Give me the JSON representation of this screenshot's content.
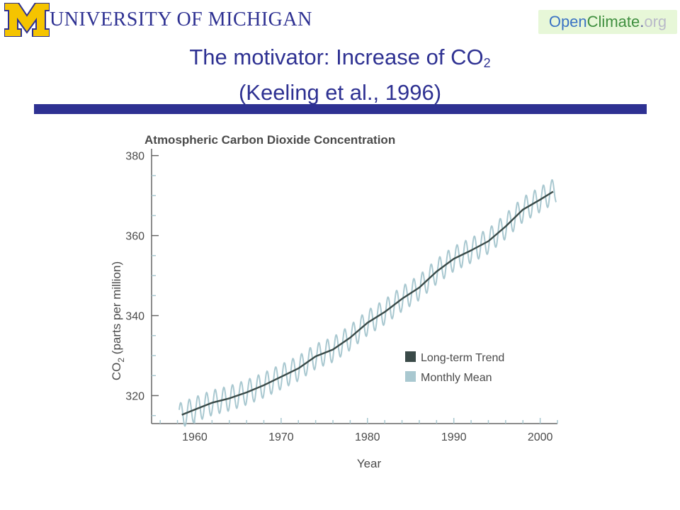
{
  "header": {
    "university_logo_text": "UNIVERSITY OF MICHIGAN",
    "opencliamte_badge": {
      "part_open": "Open",
      "part_climate": "Climate",
      "part_dot": ".",
      "part_org": "org"
    },
    "colors": {
      "um_blue": "#2e3192",
      "um_maize": "#f5c400",
      "badge_bg": "#e7f7d8"
    },
    "icons": {
      "block_m": "block-m-logo-icon"
    }
  },
  "slide": {
    "title_line1_prefix": "The motivator: Increase of CO",
    "title_line1_subscript": "2",
    "title_line2": "(Keeling et al., 1996)"
  },
  "chart_data": {
    "type": "line",
    "title": "Atmospheric Carbon Dioxide Concentration",
    "xlabel": "Year",
    "ylabel_prefix": "CO",
    "ylabel_subscript": "2",
    "ylabel_suffix": " (parts per million)",
    "xlim": [
      1955,
      2002
    ],
    "ylim": [
      313,
      381
    ],
    "x_ticks": [
      1960,
      1970,
      1980,
      1990,
      2000
    ],
    "x_tick_labels": [
      "1960",
      "1970",
      "1980",
      "1990",
      "2000"
    ],
    "y_ticks": [
      320,
      340,
      360,
      380
    ],
    "y_tick_labels": [
      "320",
      "340",
      "360",
      "380"
    ],
    "grid": false,
    "legend_position": "bottom-right",
    "series": [
      {
        "name": "Long-term Trend",
        "color": "#3a4a48",
        "x": [
          1958.5,
          1960,
          1962,
          1964,
          1966,
          1968,
          1970,
          1972,
          1974,
          1976,
          1978,
          1980,
          1982,
          1984,
          1986,
          1988,
          1990,
          1992,
          1994,
          1996,
          1998,
          2000,
          2001.5
        ],
        "y": [
          315.2,
          316.5,
          318.2,
          319.3,
          320.8,
          322.6,
          324.7,
          326.8,
          329.8,
          331.5,
          334.5,
          338.2,
          340.9,
          344.2,
          347.0,
          351.0,
          354.2,
          356.3,
          358.6,
          362.3,
          366.5,
          369.0,
          371.0
        ]
      },
      {
        "name": "Monthly Mean",
        "color": "#a9c8d0",
        "seasonal_amplitude_ppm": 3.1,
        "note_source": "seasonal cycle around long-term trend",
        "x_range": [
          1958.2,
          2001.9
        ]
      }
    ]
  }
}
